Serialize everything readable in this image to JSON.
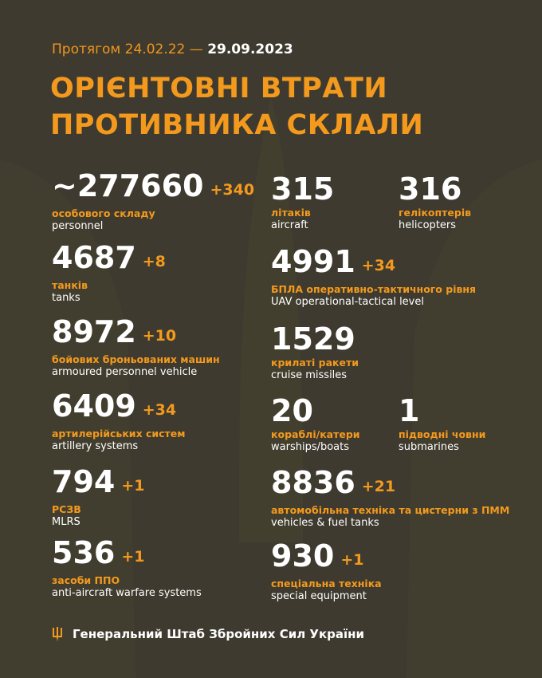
{
  "header": {
    "period_prefix": "Протягом 24.02.22 —",
    "period_date": "29.09.2023",
    "title_line1": "ОРІЄНТОВНІ ВТРАТИ",
    "title_line2": "ПРОТИВНИКА СКЛАЛИ"
  },
  "colors": {
    "background": "#3e3a2f",
    "accent": "#f39a1e",
    "text": "#ffffff"
  },
  "stats": [
    {
      "value": "~277660",
      "delta": "+340",
      "ua": "особового складу",
      "en": "personnel"
    },
    {
      "value": "315",
      "delta": "",
      "ua": "літаків",
      "en": "aircraft"
    },
    {
      "value": "316",
      "delta": "",
      "ua": "гелікоптерів",
      "en": "helicopters"
    },
    {
      "value": "4687",
      "delta": "+8",
      "ua": "танків",
      "en": "tanks"
    },
    {
      "value": "4991",
      "delta": "+34",
      "ua": "БПЛА оперативно-тактичного рівня",
      "en": "UAV operational-tactical level"
    },
    {
      "value": "8972",
      "delta": "+10",
      "ua": "бойових броньованих машин",
      "en": "armoured personnel vehicle"
    },
    {
      "value": "1529",
      "delta": "",
      "ua": "крилаті ракети",
      "en": "cruise missiles"
    },
    {
      "value": "6409",
      "delta": "+34",
      "ua": "артилерійських систем",
      "en": "artillery systems"
    },
    {
      "value": "20",
      "delta": "",
      "ua": "кораблі/катери",
      "en": "warships/boats"
    },
    {
      "value": "1",
      "delta": "",
      "ua": "підводні човни",
      "en": "submarines"
    },
    {
      "value": "794",
      "delta": "+1",
      "ua": "РСЗВ",
      "en": "MLRS"
    },
    {
      "value": "8836",
      "delta": "+21",
      "ua": "автомобільна техніка та цистерни з ПММ",
      "en": "vehicles & fuel tanks"
    },
    {
      "value": "536",
      "delta": "+1",
      "ua": "засоби ППО",
      "en": "anti-aircraft warfare systems"
    },
    {
      "value": "930",
      "delta": "+1",
      "ua": "спеціальна техніка",
      "en": "special equipment"
    }
  ],
  "footer": {
    "icon": "trident-icon",
    "text": "Генеральний Штаб Збройних Сил України"
  }
}
